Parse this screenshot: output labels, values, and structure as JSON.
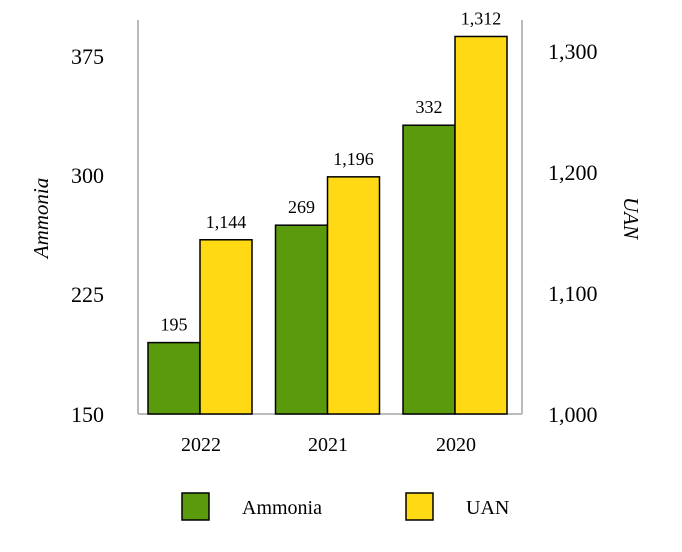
{
  "chart_data": {
    "type": "bar",
    "categories": [
      "2022",
      "2021",
      "2020"
    ],
    "series": [
      {
        "name": "Ammonia",
        "axis": "left",
        "color": "#5a9a0c",
        "values": [
          195,
          269,
          332
        ],
        "labels": [
          "195",
          "269",
          "332"
        ]
      },
      {
        "name": "UAN",
        "axis": "right",
        "color": "#ffd913",
        "values": [
          1144,
          1196,
          1312
        ],
        "labels": [
          "1,144",
          "1,196",
          "1,312"
        ]
      }
    ],
    "y_left": {
      "label": "Ammonia",
      "min": 150,
      "max": 375,
      "ticks": [
        "150",
        "225",
        "300",
        "375"
      ]
    },
    "y_right": {
      "label": "UAN",
      "min": 1000,
      "max": 1300,
      "ticks": [
        "1,000",
        "1,100",
        "1,200",
        "1,300"
      ]
    },
    "legend": {
      "position": "bottom",
      "items": [
        "Ammonia",
        "UAN"
      ]
    },
    "grid": false
  }
}
